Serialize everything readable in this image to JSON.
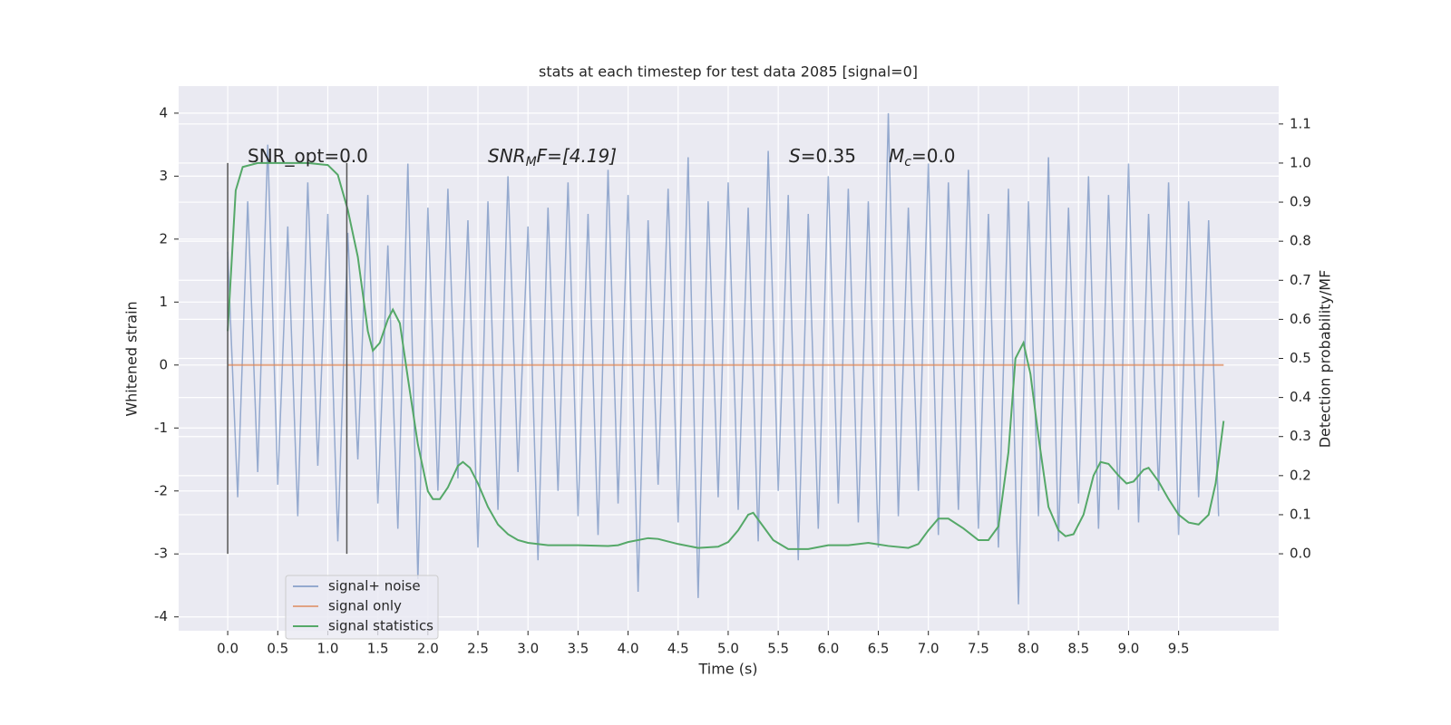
{
  "chart_data": {
    "type": "line",
    "title": "stats at each timestep for test data 2085 [signal=0]",
    "xlabel": "Time (s)",
    "ylabel": "Whitened strain",
    "y2label": "Detection probability/MF",
    "xlim": [
      -0.49,
      10.5
    ],
    "ylim": [
      -4.22,
      4.43
    ],
    "y2lim": [
      -0.197,
      1.197
    ],
    "xticks": [
      {
        "value": 0,
        "label": "0.0"
      },
      0.5,
      {
        "value": 1,
        "label": "1.0"
      },
      1.5,
      {
        "value": 2,
        "label": "2.0"
      },
      2.5,
      {
        "value": 3,
        "label": "3.0"
      },
      3.5,
      {
        "value": 4,
        "label": "4.0"
      },
      4.5,
      {
        "value": 5,
        "label": "5.0"
      },
      5.5,
      {
        "value": 6,
        "label": "6.0"
      },
      6.5,
      {
        "value": 7,
        "label": "7.0"
      },
      7.5,
      {
        "value": 8,
        "label": "8.0"
      },
      8.5,
      {
        "value": 9,
        "label": "9.0"
      },
      9.5
    ],
    "yticks": [
      -4,
      -3,
      -2,
      -1,
      0,
      1,
      2,
      3,
      4
    ],
    "y2ticks": [
      {
        "value": 0,
        "label": "0.0"
      },
      0.1,
      0.2,
      0.3,
      0.4,
      0.5,
      0.6,
      0.7,
      0.8,
      0.9,
      {
        "value": 1,
        "label": "1.0"
      },
      1.1
    ],
    "grid": true,
    "legend": "lower left",
    "annotations": [
      {
        "main": "SNR_opt=0.0"
      },
      {
        "main": "SNR",
        "sub": "M",
        "rest": "F=[4.19]"
      },
      {
        "main": "S",
        "rest": "=0.35"
      },
      {
        "main": "M",
        "sub": "c",
        "rest": "=0.0"
      }
    ],
    "vlines": {
      "x": [
        0,
        1.19
      ],
      "y2_range": [
        0,
        1
      ],
      "color": "#555555"
    },
    "series": [
      {
        "name": "signal+ noise",
        "color": "#4c72b0",
        "x": [
          0,
          0.1,
          0.2,
          0.3,
          0.4,
          0.5,
          0.6,
          0.7,
          0.8,
          0.9,
          1,
          1.1,
          1.2,
          1.3,
          1.4,
          1.5,
          1.6,
          1.7,
          1.8,
          1.9,
          2,
          2.1,
          2.2,
          2.3,
          2.4,
          2.5,
          2.6,
          2.7,
          2.8,
          2.9,
          3,
          3.1,
          3.2,
          3.3,
          3.4,
          3.5,
          3.6,
          3.7,
          3.8,
          3.9,
          4,
          4.1,
          4.2,
          4.3,
          4.4,
          4.5,
          4.6,
          4.7,
          4.8,
          4.9,
          5,
          5.1,
          5.2,
          5.3,
          5.4,
          5.5,
          5.6,
          5.7,
          5.8,
          5.9,
          6,
          6.1,
          6.2,
          6.3,
          6.4,
          6.5,
          6.6,
          6.7,
          6.8,
          6.9,
          7,
          7.1,
          7.2,
          7.3,
          7.4,
          7.5,
          7.6,
          7.7,
          7.8,
          7.9,
          8,
          8.1,
          8.2,
          8.3,
          8.4,
          8.5,
          8.6,
          8.7,
          8.8,
          8.9,
          9,
          9.1,
          9.2,
          9.3,
          9.4,
          9.5,
          9.6,
          9.7,
          9.8,
          9.9
        ],
        "values": [
          1.8,
          -2.1,
          2.6,
          -1.7,
          3.5,
          -1.9,
          2.2,
          -2.4,
          2.9,
          -1.6,
          2.4,
          -2.8,
          2.1,
          -1.5,
          2.7,
          -2.2,
          1.9,
          -2.6,
          3.2,
          -3.4,
          2.5,
          -2.0,
          2.8,
          -1.8,
          2.3,
          -2.9,
          2.6,
          -2.3,
          3.0,
          -1.7,
          2.2,
          -3.1,
          2.5,
          -2.0,
          2.9,
          -2.4,
          2.4,
          -2.7,
          3.1,
          -2.2,
          2.7,
          -3.6,
          2.3,
          -1.9,
          2.8,
          -2.5,
          3.3,
          -3.7,
          2.6,
          -2.1,
          2.9,
          -2.3,
          2.5,
          -2.8,
          3.4,
          -2.0,
          2.7,
          -3.1,
          2.4,
          -2.6,
          3.0,
          -2.2,
          2.8,
          -2.5,
          2.6,
          -2.9,
          4.0,
          -2.4,
          2.5,
          -2.0,
          3.2,
          -2.7,
          2.9,
          -2.3,
          3.1,
          -2.6,
          2.4,
          -2.9,
          2.8,
          -3.8,
          2.6,
          -2.4,
          3.3,
          -2.8,
          2.5,
          -2.2,
          3.0,
          -2.6,
          2.7,
          -2.3,
          3.2,
          -2.5,
          2.4,
          -2.0,
          2.9,
          -2.7,
          2.6,
          -2.1,
          2.3,
          -2.4
        ]
      },
      {
        "name": "signal only",
        "color": "#dd8452",
        "x": [
          0,
          9.95
        ],
        "values": [
          0,
          0
        ]
      },
      {
        "name": "signal statistics",
        "color": "#55a868",
        "axis": "y2",
        "x": [
          0,
          0.08,
          0.15,
          0.3,
          0.5,
          0.8,
          1,
          1.1,
          1.2,
          1.3,
          1.4,
          1.45,
          1.52,
          1.6,
          1.65,
          1.72,
          1.8,
          1.9,
          2,
          2.05,
          2.12,
          2.2,
          2.3,
          2.35,
          2.42,
          2.5,
          2.6,
          2.7,
          2.8,
          2.9,
          3,
          3.2,
          3.5,
          3.8,
          3.9,
          4,
          4.2,
          4.3,
          4.5,
          4.7,
          4.9,
          5,
          5.1,
          5.2,
          5.25,
          5.35,
          5.45,
          5.6,
          5.8,
          6,
          6.2,
          6.4,
          6.6,
          6.8,
          6.9,
          7,
          7.1,
          7.2,
          7.35,
          7.5,
          7.6,
          7.7,
          7.8,
          7.87,
          7.95,
          8.02,
          8.1,
          8.2,
          8.3,
          8.37,
          8.45,
          8.55,
          8.65,
          8.72,
          8.8,
          8.9,
          8.98,
          9.05,
          9.15,
          9.2,
          9.3,
          9.4,
          9.5,
          9.6,
          9.7,
          9.8,
          9.87,
          9.95
        ],
        "values": [
          0.57,
          0.93,
          0.99,
          1.0,
          1.0,
          1.0,
          0.995,
          0.97,
          0.88,
          0.76,
          0.57,
          0.52,
          0.54,
          0.6,
          0.625,
          0.59,
          0.45,
          0.28,
          0.16,
          0.14,
          0.14,
          0.17,
          0.225,
          0.235,
          0.22,
          0.18,
          0.12,
          0.075,
          0.05,
          0.035,
          0.028,
          0.022,
          0.022,
          0.02,
          0.022,
          0.03,
          0.04,
          0.038,
          0.025,
          0.015,
          0.018,
          0.03,
          0.06,
          0.1,
          0.105,
          0.07,
          0.035,
          0.012,
          0.012,
          0.022,
          0.022,
          0.028,
          0.02,
          0.015,
          0.025,
          0.06,
          0.09,
          0.09,
          0.065,
          0.035,
          0.035,
          0.07,
          0.26,
          0.5,
          0.54,
          0.46,
          0.3,
          0.12,
          0.06,
          0.045,
          0.05,
          0.1,
          0.2,
          0.235,
          0.23,
          0.2,
          0.18,
          0.185,
          0.215,
          0.22,
          0.185,
          0.14,
          0.1,
          0.08,
          0.075,
          0.1,
          0.18,
          0.34
        ]
      }
    ]
  }
}
